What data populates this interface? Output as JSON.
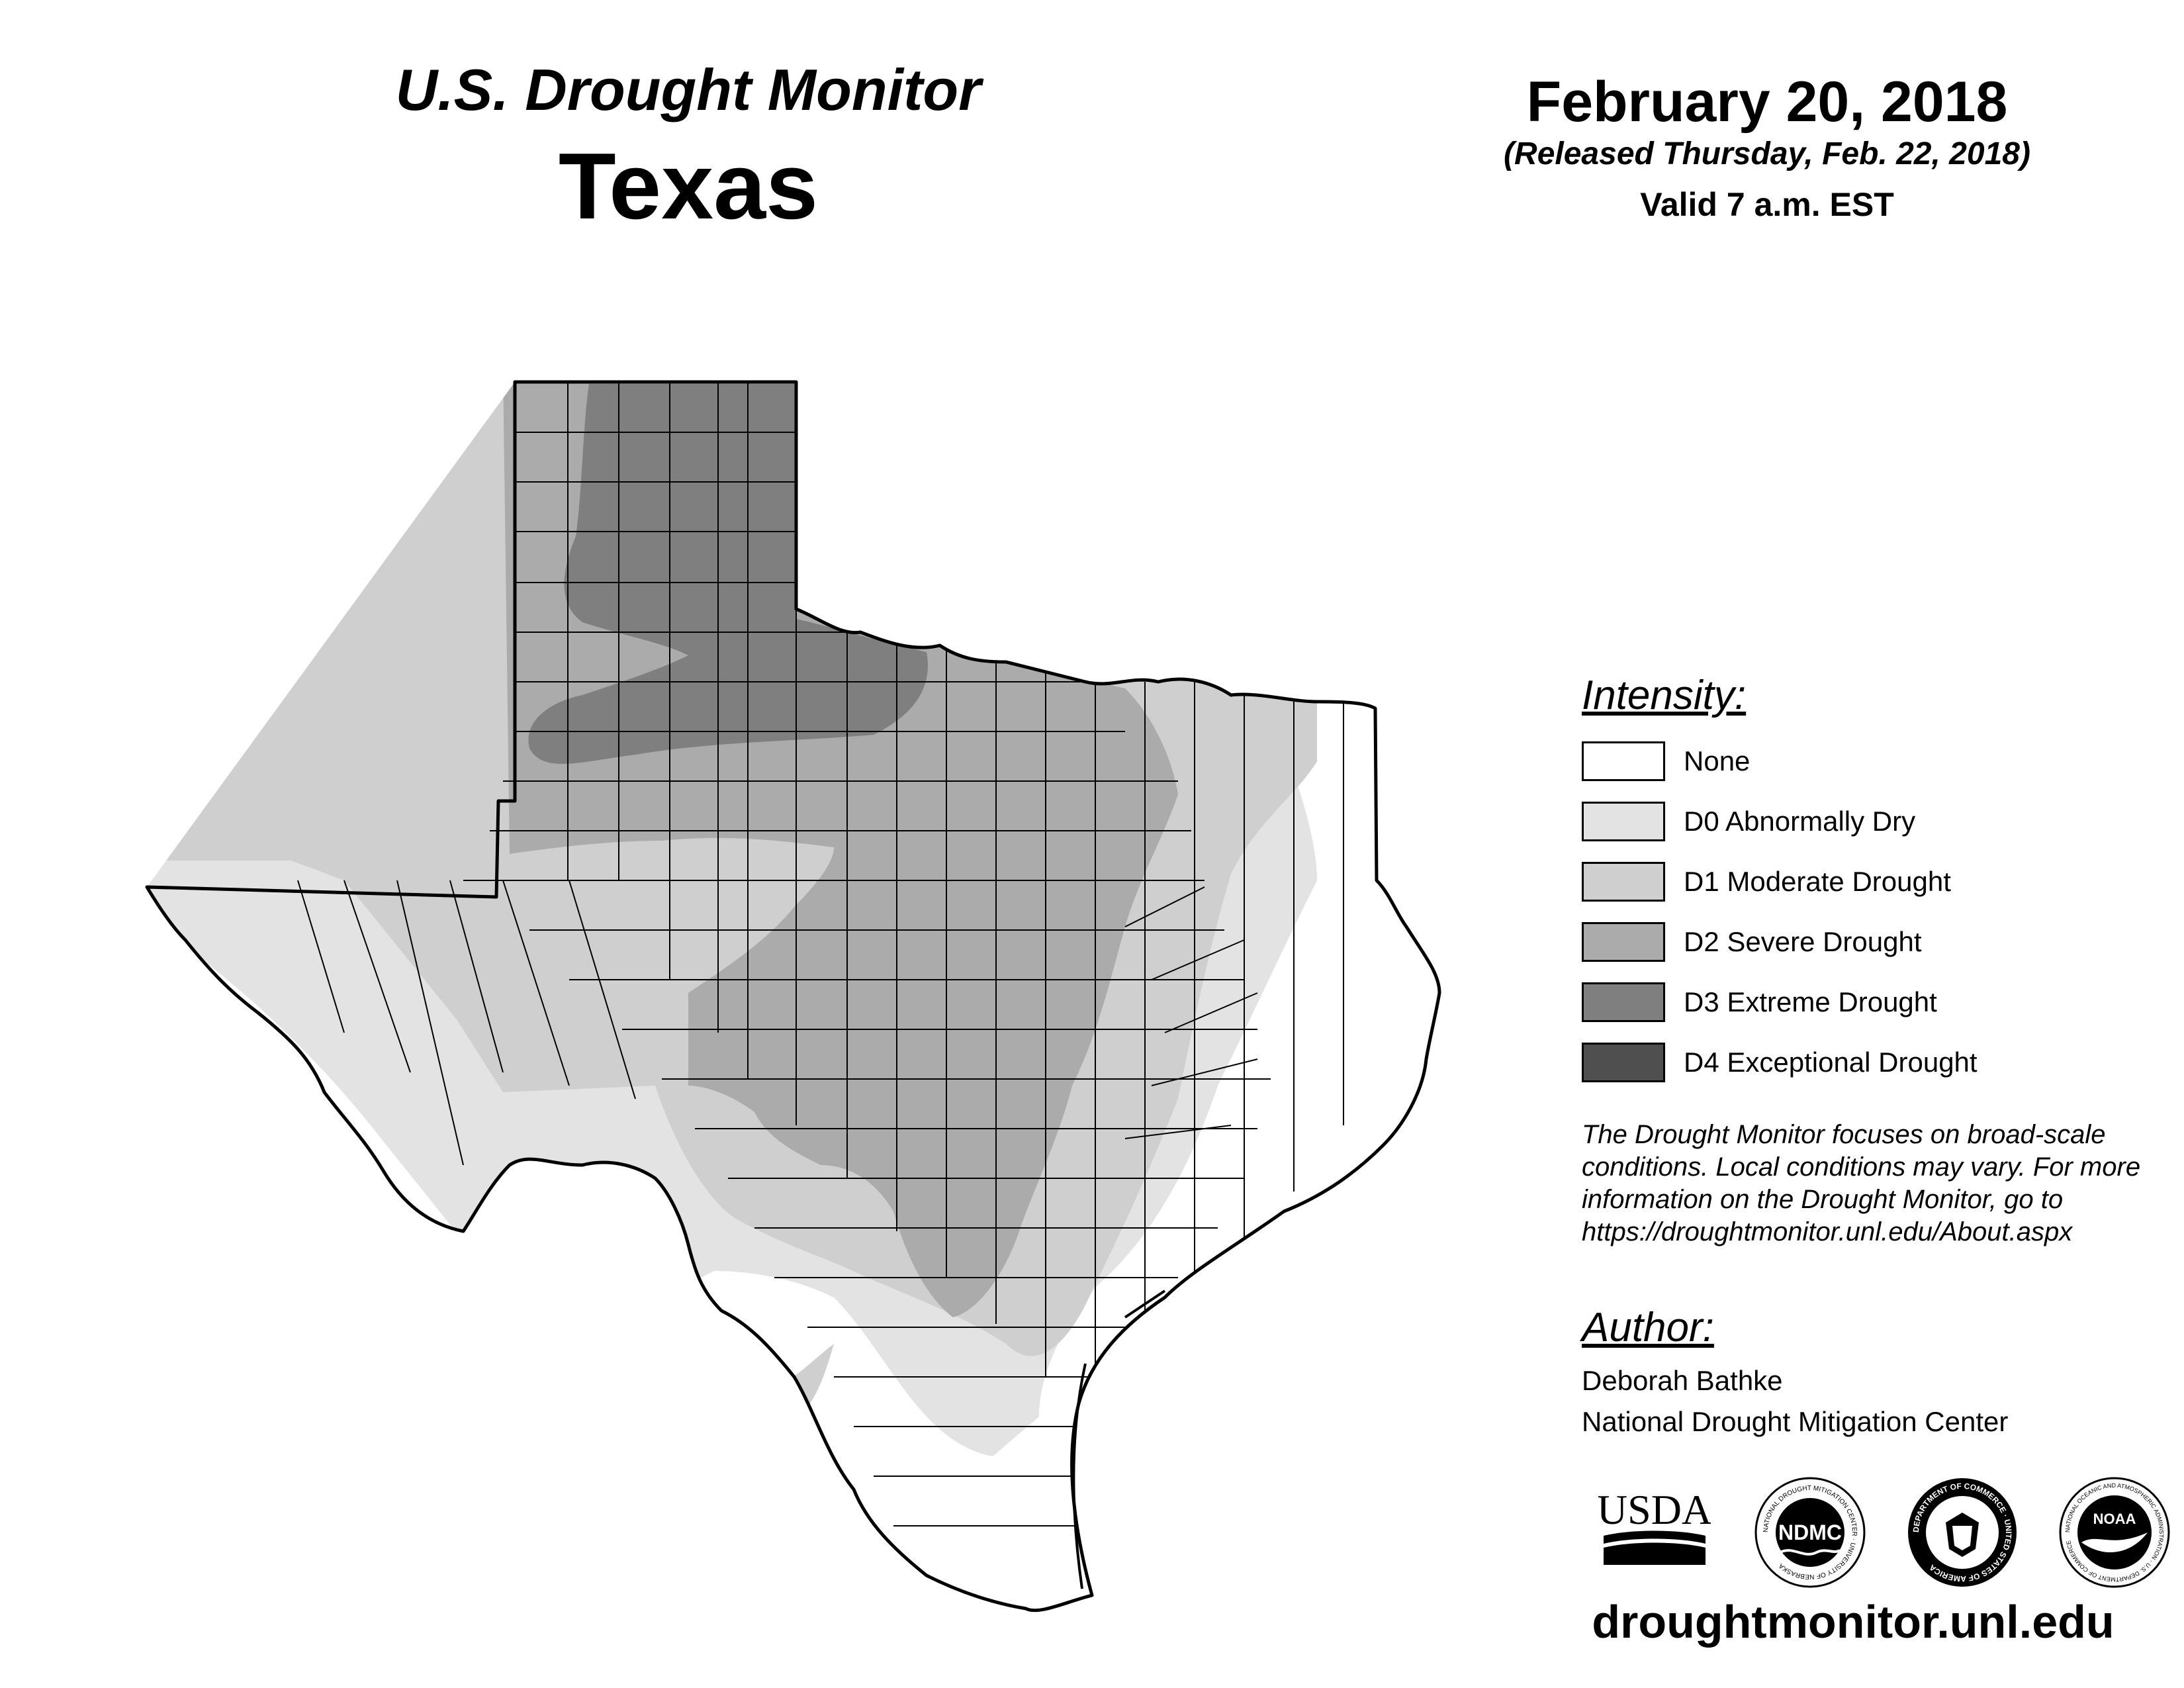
{
  "header": {
    "subtitle": "U.S. Drought Monitor",
    "region": "Texas",
    "date": "February 20, 2018",
    "released": "(Released Thursday, Feb. 22, 2018)",
    "valid": "Valid 7 a.m. EST"
  },
  "legend": {
    "heading": "Intensity:",
    "items": [
      {
        "label": "None",
        "color": "#ffffff"
      },
      {
        "label": "D0 Abnormally Dry",
        "color": "#e3e3e3"
      },
      {
        "label": "D1 Moderate Drought",
        "color": "#cfcfcf"
      },
      {
        "label": "D2 Severe Drought",
        "color": "#ababab"
      },
      {
        "label": "D3 Extreme Drought",
        "color": "#7f7f7f"
      },
      {
        "label": "D4 Exceptional Drought",
        "color": "#4f4f4f"
      }
    ]
  },
  "note": "The Drought Monitor focuses on broad-scale conditions. Local conditions may vary. For more information on the Drought Monitor, go to https://droughtmonitor.unl.edu/About.aspx",
  "author": {
    "heading": "Author:",
    "name": "Deborah Bathke",
    "organization": "National Drought Mitigation Center"
  },
  "logos": {
    "usda": "USDA",
    "ndmc": "NDMC",
    "doc_ring": "DEPARTMENT OF COMMERCE · UNITED STATES OF AMERICA",
    "noaa": "NOAA",
    "ndmc_ring": "NATIONAL DROUGHT MITIGATION CENTER · UNIVERSITY OF NEBRASKA",
    "noaa_ring": "NATIONAL OCEANIC AND ATMOSPHERIC ADMINISTRATION · U.S. DEPARTMENT OF COMMERCE"
  },
  "website": "droughtmonitor.unl.edu"
}
